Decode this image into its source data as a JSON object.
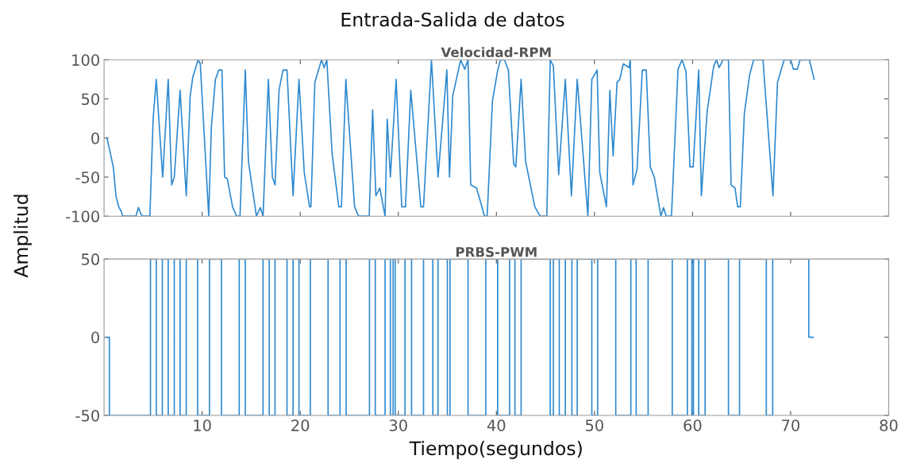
{
  "chart_data": [
    {
      "type": "line",
      "title": "Entrada-Salida de datos",
      "subtitle": "Velocidad-RPM",
      "ylabel": "Amplitud",
      "xlim": [
        0,
        80
      ],
      "xticks": [
        {
          "value": 10,
          "label": null
        },
        {
          "value": 20,
          "label": null
        },
        {
          "value": 30,
          "label": null
        },
        {
          "value": 40,
          "label": null
        },
        {
          "value": 50,
          "label": null
        },
        {
          "value": 60,
          "label": null
        },
        {
          "value": 70,
          "label": null
        },
        {
          "value": 80,
          "label": null
        }
      ],
      "ylim": [
        -100,
        100
      ],
      "yticks": [
        -100,
        -50,
        0,
        50,
        100
      ],
      "tick_labels": "y",
      "grid": false,
      "series": [
        {
          "color": "#2f8ad0",
          "x": [
            0.3,
            0.94,
            1.21,
            1.49,
            1.76,
            1.89,
            3.24,
            3.51,
            3.78,
            3.97,
            4.67,
            5.0,
            5.32,
            5.94,
            5.98,
            6.54,
            6.89,
            7.16,
            7.75,
            8.38,
            8.78,
            9.05,
            9.59,
            9.81,
            10.67,
            10.94,
            11.35,
            11.7,
            12.02,
            12.29,
            12.56,
            13.1,
            13.51,
            13.86,
            14.4,
            14.72,
            15.53,
            15.94,
            16.21,
            16.75,
            17.16,
            17.43,
            17.84,
            18.24,
            18.65,
            19.27,
            19.87,
            20.41,
            20.95,
            21.09,
            21.49,
            22.17,
            22.44,
            22.71,
            23.25,
            23.93,
            24.2,
            24.65,
            25.54,
            25.95,
            27.03,
            27.38,
            27.71,
            28.11,
            28.65,
            28.87,
            29.19,
            29.78,
            30.35,
            30.73,
            31.27,
            32.3,
            32.57,
            33.38,
            34.05,
            34.95,
            35.22,
            35.55,
            36.36,
            36.77,
            37.11,
            37.38,
            37.98,
            38.79,
            39.06,
            39.6,
            40.14,
            40.41,
            40.82,
            41.22,
            41.76,
            41.98,
            42.52,
            42.98,
            43.92,
            44.06,
            44.46,
            45.14,
            45.49,
            45.81,
            46.35,
            47.03,
            47.65,
            48.24,
            49.33,
            49.73,
            50.27,
            50.54,
            51.22,
            51.57,
            51.9,
            52.3,
            52.58,
            52.94,
            53.52,
            53.65,
            53.93,
            54.34,
            54.88,
            55.28,
            55.69,
            56.1,
            56.77,
            57.04,
            57.31,
            57.85,
            58.52,
            58.93,
            59.33,
            59.74,
            60.06,
            60.63,
            60.9,
            61.49,
            62.16,
            62.44,
            62.71,
            63.11,
            63.66,
            63.93,
            64.33,
            64.6,
            64.87,
            65.28,
            65.82,
            66.23,
            67.18,
            68.2,
            68.66,
            69.34,
            70.01,
            70.28,
            70.69,
            70.96,
            71.91,
            72.4
          ],
          "values": [
            0,
            -37,
            -74,
            -88,
            -94,
            -100,
            -100,
            -89,
            -98,
            -100,
            -100,
            24,
            75,
            -44,
            -50,
            75,
            -60,
            -50,
            61,
            -74,
            54,
            78,
            100,
            95,
            -100,
            14,
            75,
            87,
            87,
            -50,
            -52,
            -88,
            -100,
            -100,
            87,
            -30,
            -100,
            -89,
            -100,
            75,
            -50,
            -60,
            61,
            87,
            87,
            -74,
            75,
            -44,
            -88,
            -88,
            71,
            100,
            90,
            100,
            -20,
            -88,
            -88,
            75,
            -88,
            -100,
            -100,
            36,
            -74,
            -64,
            -100,
            24,
            -50,
            75,
            -88,
            -88,
            61,
            -88,
            -88,
            100,
            -50,
            87,
            -50,
            54,
            100,
            88,
            100,
            -60,
            -64,
            -100,
            -100,
            48,
            87,
            100,
            100,
            87,
            -33,
            -37,
            75,
            -30,
            -88,
            -91,
            -100,
            -100,
            100,
            92,
            -47,
            75,
            -74,
            75,
            -100,
            75,
            87,
            -44,
            -88,
            61,
            -23,
            71,
            75,
            95,
            90,
            100,
            -60,
            -40,
            87,
            87,
            -37,
            -50,
            -100,
            -89,
            -100,
            -100,
            88,
            100,
            85,
            -37,
            -37,
            87,
            -74,
            34,
            92,
            100,
            90,
            100,
            100,
            -60,
            -64,
            -88,
            -88,
            31,
            81,
            100,
            100,
            -74,
            71,
            100,
            100,
            88,
            88,
            100,
            100,
            75
          ]
        }
      ]
    },
    {
      "type": "step",
      "subtitle": "PRBS-PWM",
      "xlabel": "Tiempo(segundos)",
      "xlim": [
        0,
        80
      ],
      "xticks": [
        10,
        20,
        30,
        40,
        50,
        60,
        70,
        80
      ],
      "ylim": [
        -50,
        50
      ],
      "yticks": [
        -50,
        0,
        50
      ],
      "grid": false,
      "series": [
        {
          "color": "#2f8ad0",
          "x": [
            0.3,
            0.54,
            4.73,
            5.32,
            5.94,
            6.54,
            7.16,
            7.75,
            8.38,
            9.54,
            10.75,
            11.97,
            13.78,
            14.4,
            16.21,
            16.84,
            17.43,
            18.65,
            19.27,
            19.87,
            21.03,
            22.84,
            24.06,
            24.68,
            27.06,
            27.65,
            28.65,
            29.19,
            29.47,
            29.68,
            30.68,
            31.35,
            32.57,
            33.52,
            34.05,
            35.0,
            35.27,
            37.11,
            38.92,
            40.13,
            41.35,
            41.89,
            42.52,
            45.49,
            45.81,
            46.41,
            47.03,
            47.7,
            48.24,
            49.73,
            50.32,
            52.17,
            53.71,
            54.25,
            55.47,
            57.93,
            59.47,
            59.93,
            60.09,
            60.63,
            61.28,
            63.66,
            64.79,
            67.52,
            68.17,
            71.85,
            72.3
          ],
          "values": [
            0,
            -50,
            50,
            -50,
            50,
            -50,
            50,
            -50,
            50,
            -50,
            50,
            -50,
            50,
            -50,
            50,
            -50,
            50,
            -50,
            50,
            -50,
            50,
            -50,
            50,
            -50,
            50,
            -50,
            50,
            -50,
            50,
            -50,
            50,
            -50,
            50,
            -50,
            50,
            -50,
            50,
            -50,
            50,
            -50,
            50,
            -50,
            50,
            -50,
            50,
            -50,
            50,
            -50,
            50,
            -50,
            50,
            -50,
            50,
            -50,
            50,
            -50,
            50,
            -50,
            50,
            -50,
            50,
            -50,
            50,
            -50,
            50,
            0,
            0
          ]
        }
      ]
    }
  ]
}
